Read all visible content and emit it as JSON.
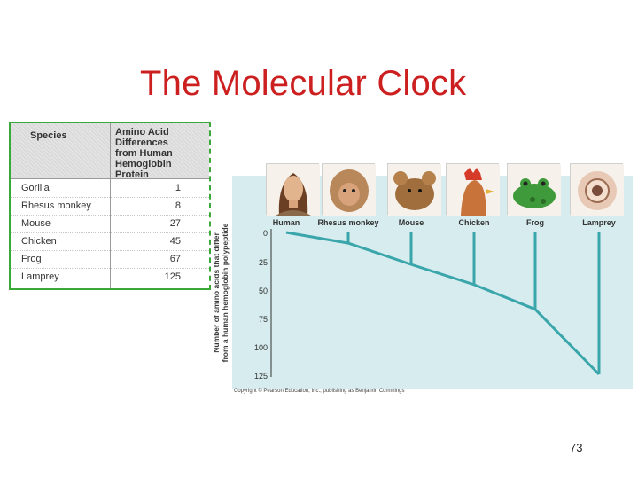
{
  "slide": {
    "title": "The Molecular Clock",
    "page_number": "73"
  },
  "table": {
    "col_species": "Species",
    "col_diff_lines": [
      "Amino Acid",
      "Differences",
      "from Human",
      "Hemoglobin",
      "Protein"
    ],
    "rows": [
      {
        "species": "Gorilla",
        "value": "1"
      },
      {
        "species": "Rhesus monkey",
        "value": "8"
      },
      {
        "species": "Mouse",
        "value": "27"
      },
      {
        "species": "Chicken",
        "value": "45"
      },
      {
        "species": "Frog",
        "value": "67"
      },
      {
        "species": "Lamprey",
        "value": "125"
      }
    ]
  },
  "diagram": {
    "ylabel_line1": "Number of amino acids that differ",
    "ylabel_line2": "from a human hemoglobin polypeptide",
    "yticks": [
      "0",
      "25",
      "50",
      "75",
      "100",
      "125"
    ],
    "species_labels": [
      "Human",
      "Rhesus monkey",
      "Mouse",
      "Chicken",
      "Frog",
      "Lamprey"
    ],
    "branch_values": [
      0,
      8,
      27,
      45,
      67,
      125
    ],
    "copyright": "Copyright © Pearson Education, Inc., publishing as Benjamin Cummings",
    "colors": {
      "line": "#3aa6ab",
      "panel": "#d6ecee",
      "title": "#cc1f1f",
      "table_border": "#3aa93a"
    },
    "portrait_icons": [
      "human-portrait",
      "rhesus-monkey-portrait",
      "mouse-portrait",
      "chicken-portrait",
      "frog-portrait",
      "lamprey-portrait"
    ]
  }
}
